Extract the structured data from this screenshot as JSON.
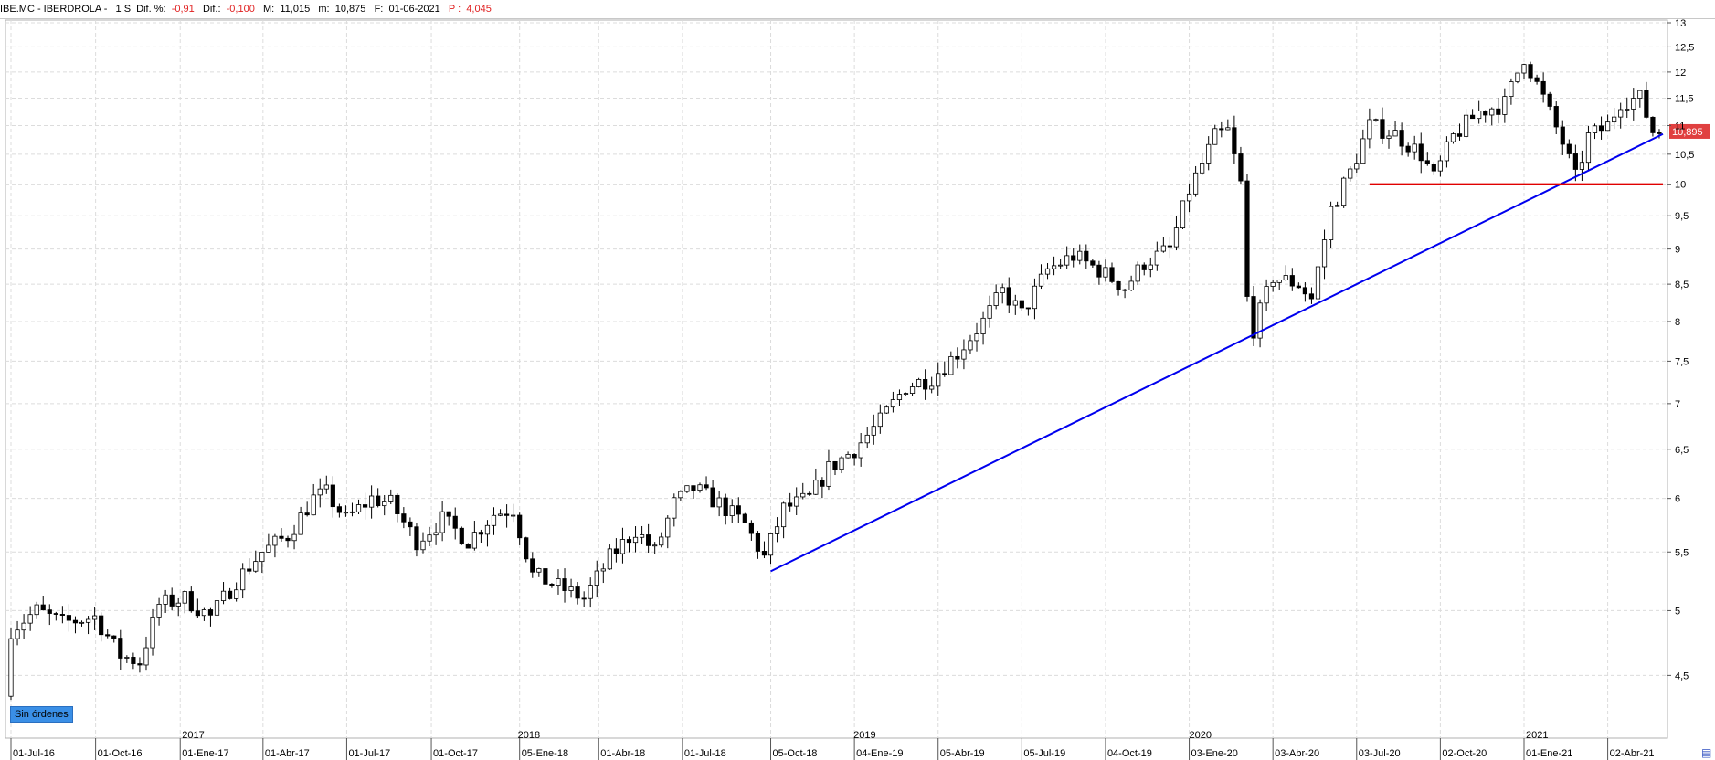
{
  "header": {
    "symbol": "IBE.MC - IBERDROLA -",
    "timeframe": "1 S",
    "dif_pct_label": "Dif. %:",
    "dif_pct_value": "-0,91",
    "dif_label": "Dif.:",
    "dif_value": "-0,100",
    "high_label": "M:",
    "high_value": "11,015",
    "low_label": "m:",
    "low_value": "10,875",
    "date_label": "F:",
    "date_value": "01-06-2021",
    "p_label": "P :",
    "p_value": "4,045"
  },
  "badge_text": "Sin órdenes",
  "colors": {
    "trendline": "#0000ee",
    "support": "#e00000",
    "price_tag": "#e04040",
    "up_candle": "#ffffff",
    "down_candle": "#000000"
  },
  "chart_data": {
    "type": "candlestick",
    "y_scale": "log",
    "ylim": [
      4.3,
      13.0
    ],
    "y_ticks": [
      "13",
      "12,5",
      "12",
      "11,5",
      "11",
      "10,5",
      "10",
      "9,5",
      "9",
      "8,5",
      "8",
      "7,5",
      "7",
      "6,5",
      "6",
      "5,5",
      "5",
      "4,5"
    ],
    "x_start": "2016-07-01",
    "x_end": "2021-06-01",
    "x_date_labels": [
      {
        "date": "2016-07-01",
        "label": "01-Jul-16"
      },
      {
        "date": "2016-10-01",
        "label": "01-Oct-16"
      },
      {
        "date": "2017-01-01",
        "label": "01-Ene-17"
      },
      {
        "date": "2017-04-01",
        "label": "01-Abr-17"
      },
      {
        "date": "2017-07-01",
        "label": "01-Jul-17"
      },
      {
        "date": "2017-10-01",
        "label": "01-Oct-17"
      },
      {
        "date": "2018-01-05",
        "label": "05-Ene-18"
      },
      {
        "date": "2018-04-01",
        "label": "01-Abr-18"
      },
      {
        "date": "2018-07-01",
        "label": "01-Jul-18"
      },
      {
        "date": "2018-10-05",
        "label": "05-Oct-18"
      },
      {
        "date": "2019-01-04",
        "label": "04-Ene-19"
      },
      {
        "date": "2019-04-05",
        "label": "05-Abr-19"
      },
      {
        "date": "2019-07-05",
        "label": "05-Jul-19"
      },
      {
        "date": "2019-10-04",
        "label": "04-Oct-19"
      },
      {
        "date": "2020-01-03",
        "label": "03-Ene-20"
      },
      {
        "date": "2020-04-03",
        "label": "03-Abr-20"
      },
      {
        "date": "2020-07-03",
        "label": "03-Jul-20"
      },
      {
        "date": "2020-10-02",
        "label": "02-Oct-20"
      },
      {
        "date": "2021-01-01",
        "label": "01-Ene-21"
      },
      {
        "date": "2021-04-02",
        "label": "02-Abr-21"
      }
    ],
    "year_labels": [
      {
        "date": "2017-01-01",
        "label": "2017"
      },
      {
        "date": "2018-01-01",
        "label": "2018"
      },
      {
        "date": "2019-01-01",
        "label": "2019"
      },
      {
        "date": "2020-01-01",
        "label": "2020"
      },
      {
        "date": "2021-01-01",
        "label": "2021"
      }
    ],
    "price_anchors": [
      [
        "2016-07-01",
        4.35
      ],
      [
        "2016-07-08",
        4.85
      ],
      [
        "2016-08-05",
        5.0
      ],
      [
        "2016-09-02",
        4.9
      ],
      [
        "2016-10-07",
        4.95
      ],
      [
        "2016-11-04",
        4.65
      ],
      [
        "2016-11-25",
        4.6
      ],
      [
        "2016-12-16",
        5.05
      ],
      [
        "2017-01-13",
        5.1
      ],
      [
        "2017-02-10",
        4.95
      ],
      [
        "2017-03-10",
        5.25
      ],
      [
        "2017-04-07",
        5.5
      ],
      [
        "2017-05-05",
        5.65
      ],
      [
        "2017-06-02",
        6.0
      ],
      [
        "2017-06-16",
        6.05
      ],
      [
        "2017-07-07",
        5.8
      ],
      [
        "2017-08-04",
        6.0
      ],
      [
        "2017-08-25",
        5.95
      ],
      [
        "2017-09-22",
        5.6
      ],
      [
        "2017-10-20",
        5.8
      ],
      [
        "2017-11-17",
        5.6
      ],
      [
        "2017-12-15",
        5.85
      ],
      [
        "2018-01-05",
        5.9
      ],
      [
        "2018-01-26",
        5.3
      ],
      [
        "2018-02-23",
        5.2
      ],
      [
        "2018-03-23",
        5.1
      ],
      [
        "2018-04-20",
        5.45
      ],
      [
        "2018-05-18",
        5.7
      ],
      [
        "2018-06-08",
        5.5
      ],
      [
        "2018-06-29",
        5.95
      ],
      [
        "2018-07-20",
        6.1
      ],
      [
        "2018-08-17",
        5.95
      ],
      [
        "2018-09-14",
        5.75
      ],
      [
        "2018-10-05",
        5.45
      ],
      [
        "2018-10-26",
        5.9
      ],
      [
        "2018-11-23",
        6.0
      ],
      [
        "2018-12-14",
        6.3
      ],
      [
        "2019-01-11",
        6.5
      ],
      [
        "2019-02-08",
        6.8
      ],
      [
        "2019-03-08",
        7.2
      ],
      [
        "2019-04-05",
        7.3
      ],
      [
        "2019-05-03",
        7.6
      ],
      [
        "2019-05-31",
        8.0
      ],
      [
        "2019-06-21",
        8.4
      ],
      [
        "2019-07-12",
        8.1
      ],
      [
        "2019-08-09",
        8.7
      ],
      [
        "2019-09-06",
        8.9
      ],
      [
        "2019-10-04",
        8.7
      ],
      [
        "2019-11-01",
        8.45
      ],
      [
        "2019-11-22",
        8.8
      ],
      [
        "2019-12-20",
        9.0
      ],
      [
        "2020-01-10",
        9.9
      ],
      [
        "2020-02-07",
        10.8
      ],
      [
        "2020-02-21",
        10.9
      ],
      [
        "2020-03-06",
        10.0
      ],
      [
        "2020-03-13",
        8.3
      ],
      [
        "2020-03-20",
        7.9
      ],
      [
        "2020-04-10",
        8.6
      ],
      [
        "2020-05-08",
        8.5
      ],
      [
        "2020-05-22",
        8.3
      ],
      [
        "2020-06-12",
        9.6
      ],
      [
        "2020-07-03",
        10.2
      ],
      [
        "2020-07-24",
        11.0
      ],
      [
        "2020-08-21",
        10.85
      ],
      [
        "2020-09-18",
        10.5
      ],
      [
        "2020-10-02",
        10.1
      ],
      [
        "2020-10-23",
        10.8
      ],
      [
        "2020-11-20",
        11.25
      ],
      [
        "2020-12-18",
        11.4
      ],
      [
        "2021-01-08",
        12.3
      ],
      [
        "2021-01-29",
        11.5
      ],
      [
        "2021-02-19",
        10.7
      ],
      [
        "2021-03-05",
        10.1
      ],
      [
        "2021-03-19",
        10.8
      ],
      [
        "2021-04-09",
        11.0
      ],
      [
        "2021-04-23",
        11.45
      ],
      [
        "2021-05-14",
        11.5
      ],
      [
        "2021-05-28",
        10.9
      ]
    ],
    "last_price": 10.895,
    "last_price_label": "10,895",
    "trendline": {
      "from": [
        "2018-10-05",
        5.33
      ],
      "to": [
        "2021-06-01",
        10.85
      ]
    },
    "support_line": {
      "from": [
        "2020-07-17",
        10.0
      ],
      "to": [
        "2021-06-01",
        10.0
      ]
    }
  }
}
